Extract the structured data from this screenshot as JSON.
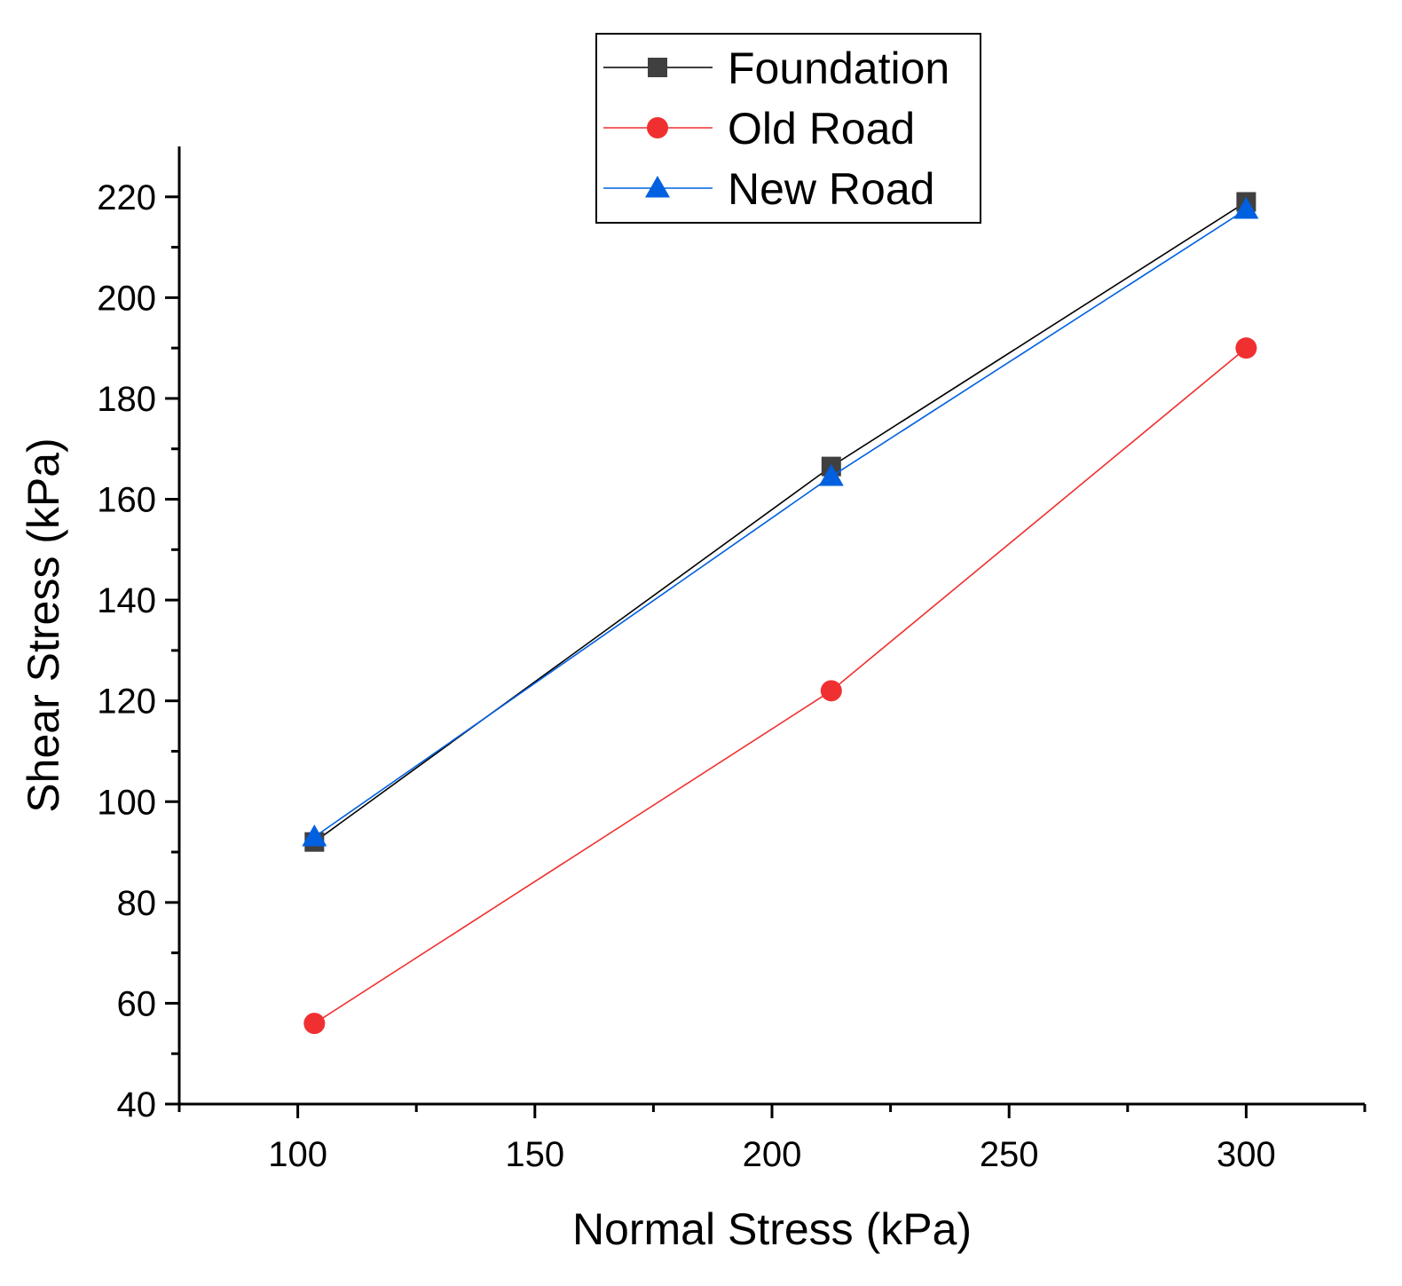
{
  "chart_data": {
    "type": "line",
    "title": "",
    "xlabel": "Normal Stress (kPa)",
    "ylabel": "Shear Stress (kPa)",
    "xlim": [
      75,
      325
    ],
    "ylim": [
      40,
      230
    ],
    "x_ticks": [
      100,
      150,
      200,
      250,
      300
    ],
    "y_ticks": [
      40,
      60,
      80,
      100,
      120,
      140,
      160,
      180,
      200,
      220
    ],
    "x_tick_labels": [
      "100",
      "150",
      "200",
      "250",
      "300"
    ],
    "y_tick_labels": [
      "40",
      "60",
      "80",
      "100",
      "120",
      "140",
      "160",
      "180",
      "200",
      "220"
    ],
    "grid": false,
    "legend_position": "top-center",
    "series": [
      {
        "name": "Foundation",
        "marker": "square",
        "color": "#404040",
        "line_color": "#000000",
        "points": [
          [
            103.5,
            92
          ],
          [
            212.5,
            166.5
          ],
          [
            300,
            219
          ]
        ]
      },
      {
        "name": "Old Road",
        "marker": "circle",
        "color": "#f03030",
        "line_color": "#f03030",
        "points": [
          [
            103.5,
            56
          ],
          [
            212.5,
            122
          ],
          [
            300,
            190
          ]
        ]
      },
      {
        "name": "New Road",
        "marker": "triangle",
        "color": "#0060e0",
        "line_color": "#0060e0",
        "points": [
          [
            103.5,
            93
          ],
          [
            212.5,
            164.5
          ],
          [
            300,
            217.5
          ]
        ]
      }
    ]
  }
}
